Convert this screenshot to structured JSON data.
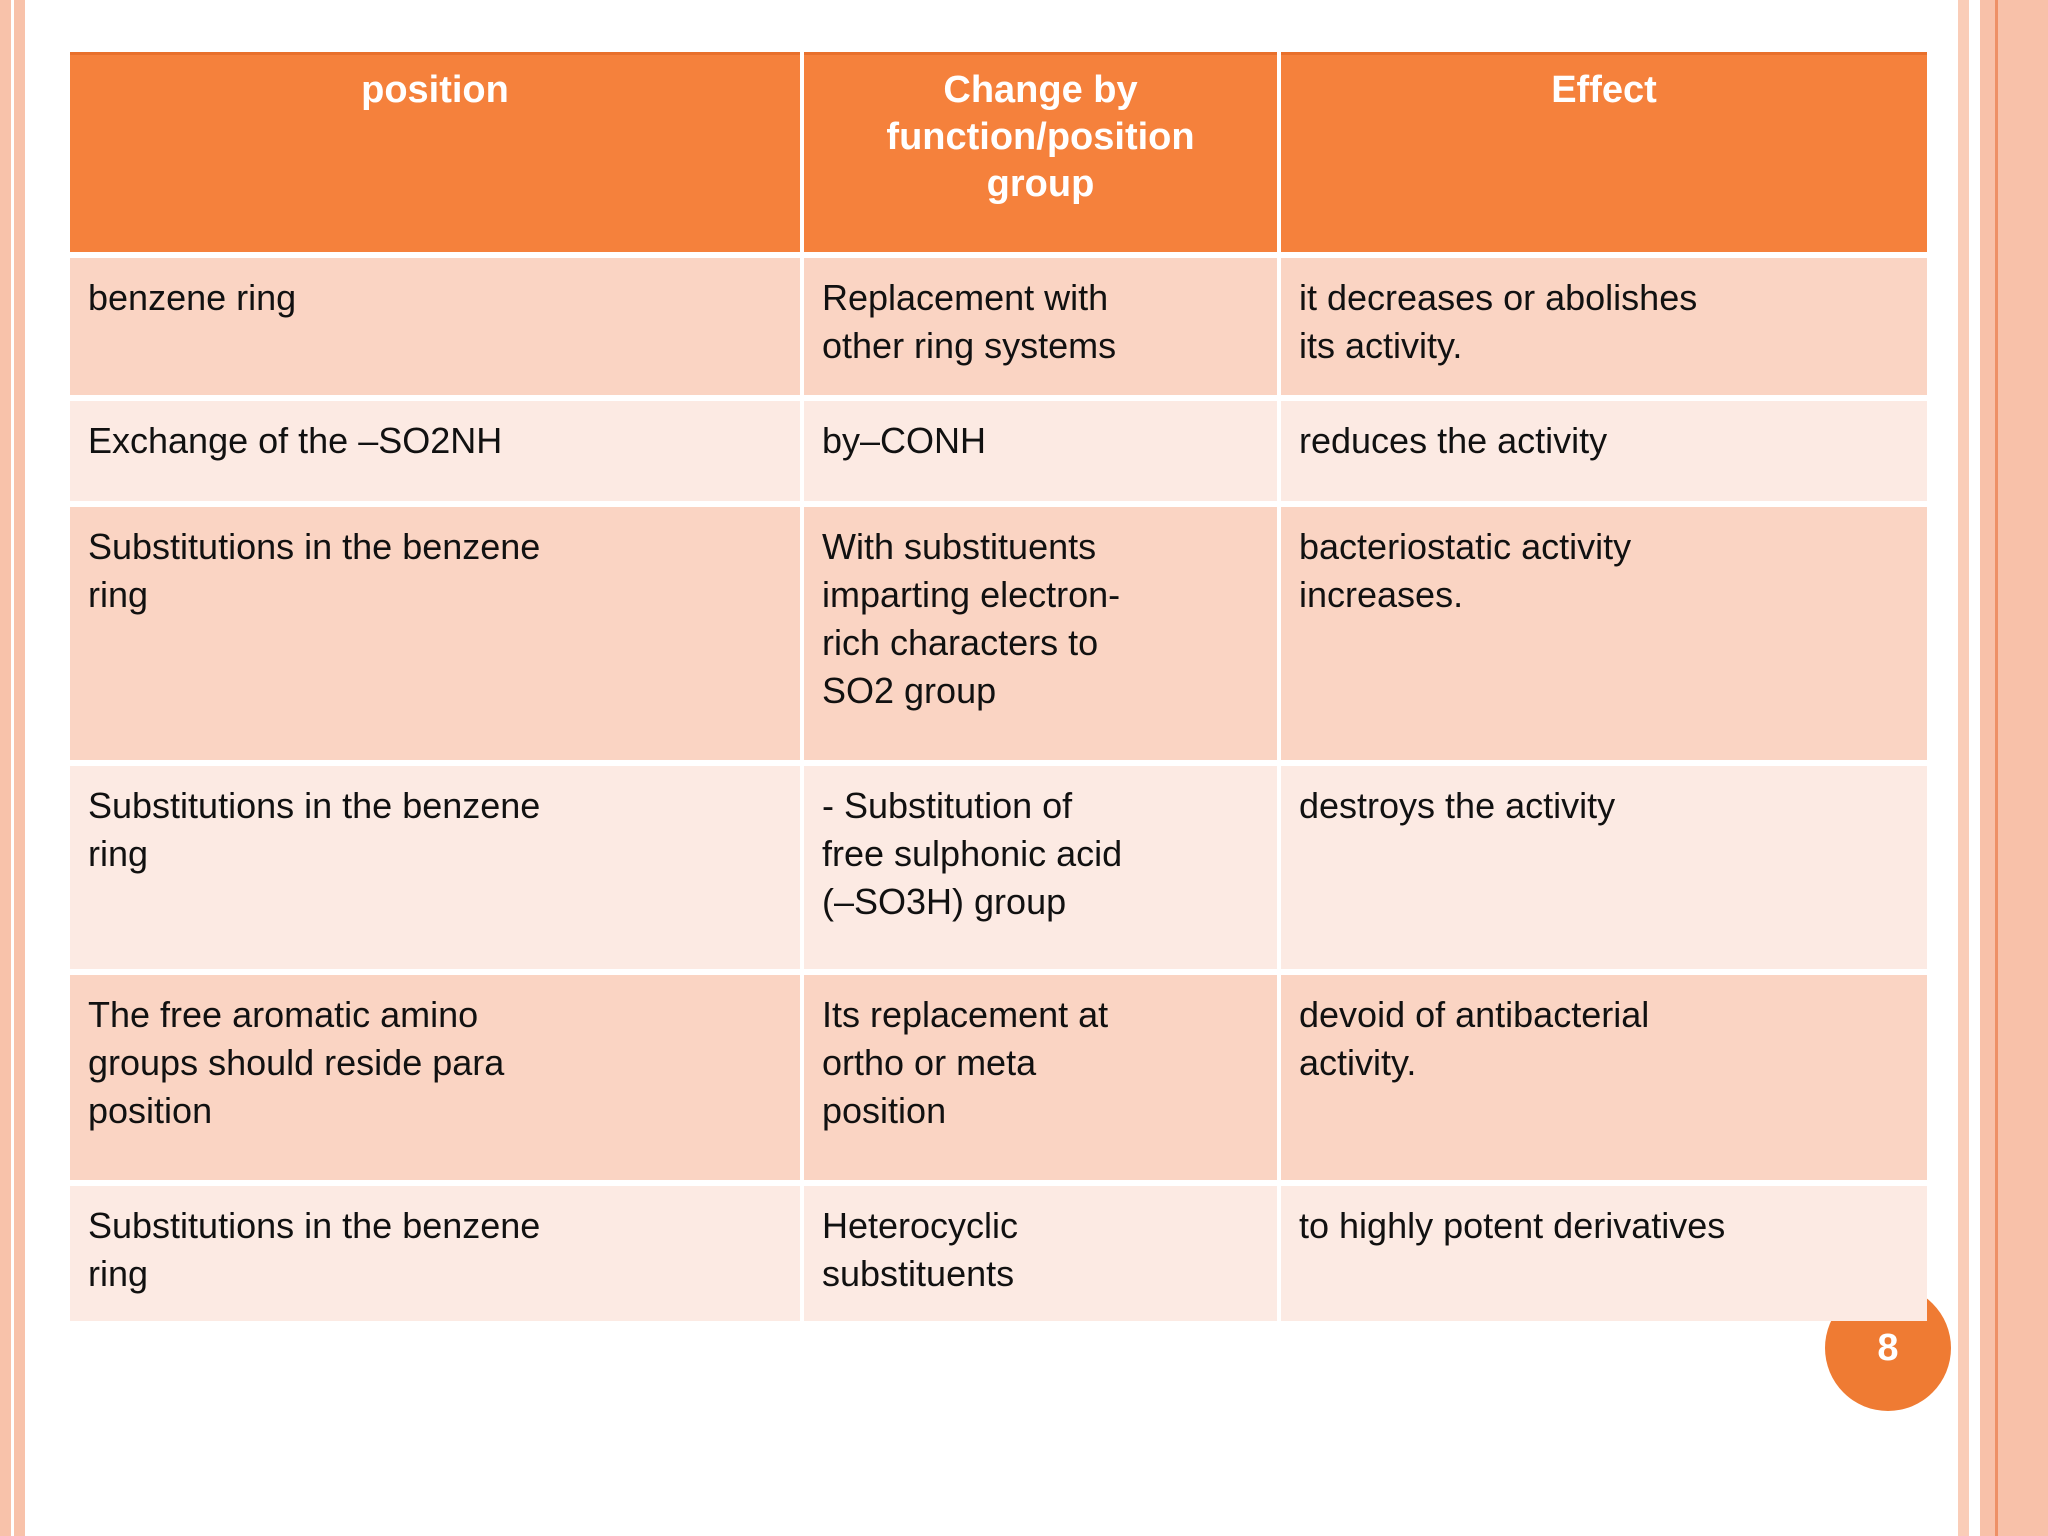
{
  "slide": {
    "page_number": "8",
    "colors": {
      "header_bg": "#f5813c",
      "header_text": "#ffffff",
      "row_dark": "#fad4c3",
      "row_light": "#fceae3",
      "circle": "#ef7b33",
      "edge_stripe": "#f8c2aa",
      "body_text": "#111111"
    }
  },
  "table": {
    "headers": [
      "position",
      "Change by\nfunction/position\ngroup",
      "Effect"
    ],
    "rows": [
      [
        "benzene ring",
        "Replacement with\nother ring systems",
        "it decreases or abolishes\nits activity."
      ],
      [
        "Exchange of the –SO2NH",
        "by–CONH",
        "reduces the activity"
      ],
      [
        "Substitutions in the benzene\nring",
        "With substituents\nimparting electron-\nrich characters to\nSO2 group",
        "bacteriostatic activity\nincreases."
      ],
      [
        "Substitutions in the benzene\nring",
        "- Substitution of\nfree sulphonic acid\n(–SO3H) group",
        "destroys the activity"
      ],
      [
        "The free aromatic amino\ngroups should reside para\nposition",
        "Its replacement at\northo or meta\nposition",
        "devoid of antibacterial\nactivity."
      ],
      [
        "Substitutions in the benzene\nring",
        "Heterocyclic\nsubstituents",
        "to highly potent derivatives"
      ]
    ]
  }
}
